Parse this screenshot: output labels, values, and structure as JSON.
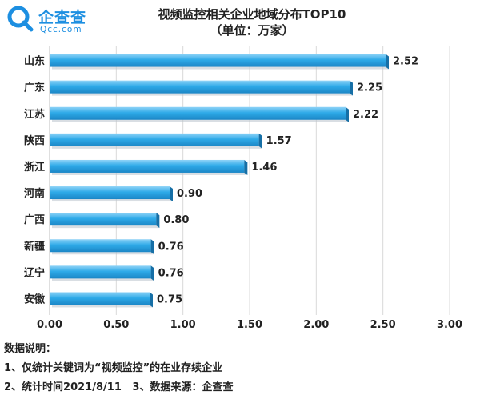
{
  "logo": {
    "text": "企查查",
    "domain": "Qcc.com"
  },
  "chart_data": {
    "type": "bar",
    "orientation": "horizontal",
    "title": "视频监控相关企业地域分布TOP10",
    "subtitle": "（单位：万家）",
    "categories": [
      "山东",
      "广东",
      "江苏",
      "陕西",
      "浙江",
      "河南",
      "广西",
      "新疆",
      "辽宁",
      "安徽"
    ],
    "values": [
      2.52,
      2.25,
      2.22,
      1.57,
      1.46,
      0.9,
      0.8,
      0.76,
      0.76,
      0.75
    ],
    "value_labels": [
      "2.52",
      "2.25",
      "2.22",
      "1.57",
      "1.46",
      "0.90",
      "0.80",
      "0.76",
      "0.76",
      "0.75"
    ],
    "xlim": [
      0,
      3
    ],
    "xticks": [
      "0.00",
      "0.50",
      "1.00",
      "1.50",
      "2.00",
      "2.50",
      "3.00"
    ],
    "grid": true,
    "bar_color": "#2eaae8"
  },
  "notes": {
    "heading": "数据说明：",
    "line1": "1、仅统计关键词为“视频监控”的在业存续企业",
    "line2": "2、统计时间2021/8/11   3、数据来源：企查查"
  }
}
